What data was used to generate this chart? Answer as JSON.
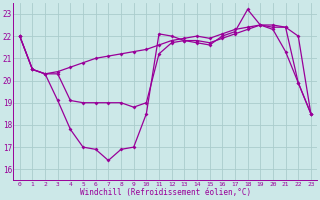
{
  "xlabel": "Windchill (Refroidissement éolien,°C)",
  "x_values": [
    0,
    1,
    2,
    3,
    4,
    5,
    6,
    7,
    8,
    9,
    10,
    11,
    12,
    13,
    14,
    15,
    16,
    17,
    18,
    19,
    20,
    21,
    22,
    23
  ],
  "series1": [
    22.0,
    20.5,
    20.3,
    20.4,
    20.6,
    20.8,
    21.0,
    21.1,
    21.2,
    21.3,
    21.4,
    21.6,
    21.8,
    21.9,
    22.0,
    21.9,
    22.1,
    22.3,
    22.4,
    22.5,
    22.5,
    22.4,
    22.0,
    18.5
  ],
  "series2": [
    22.0,
    20.5,
    20.3,
    20.3,
    19.1,
    19.0,
    19.0,
    19.0,
    19.0,
    18.8,
    19.0,
    21.2,
    21.7,
    21.8,
    21.8,
    21.7,
    21.9,
    22.1,
    22.3,
    22.5,
    22.4,
    22.4,
    19.9,
    18.5
  ],
  "series3": [
    22.0,
    20.5,
    20.3,
    19.1,
    17.8,
    17.0,
    16.9,
    16.4,
    16.9,
    17.0,
    18.5,
    22.1,
    22.0,
    21.8,
    21.7,
    21.6,
    22.0,
    22.2,
    23.2,
    22.5,
    22.3,
    21.3,
    19.9,
    18.5
  ],
  "line_color": "#990099",
  "bg_color": "#cce8e8",
  "grid_color": "#aacccc",
  "ylim": [
    15.5,
    23.5
  ],
  "yticks": [
    16,
    17,
    18,
    19,
    20,
    21,
    22,
    23
  ],
  "marker": "D",
  "marker_size": 2.0,
  "line_width": 0.9
}
